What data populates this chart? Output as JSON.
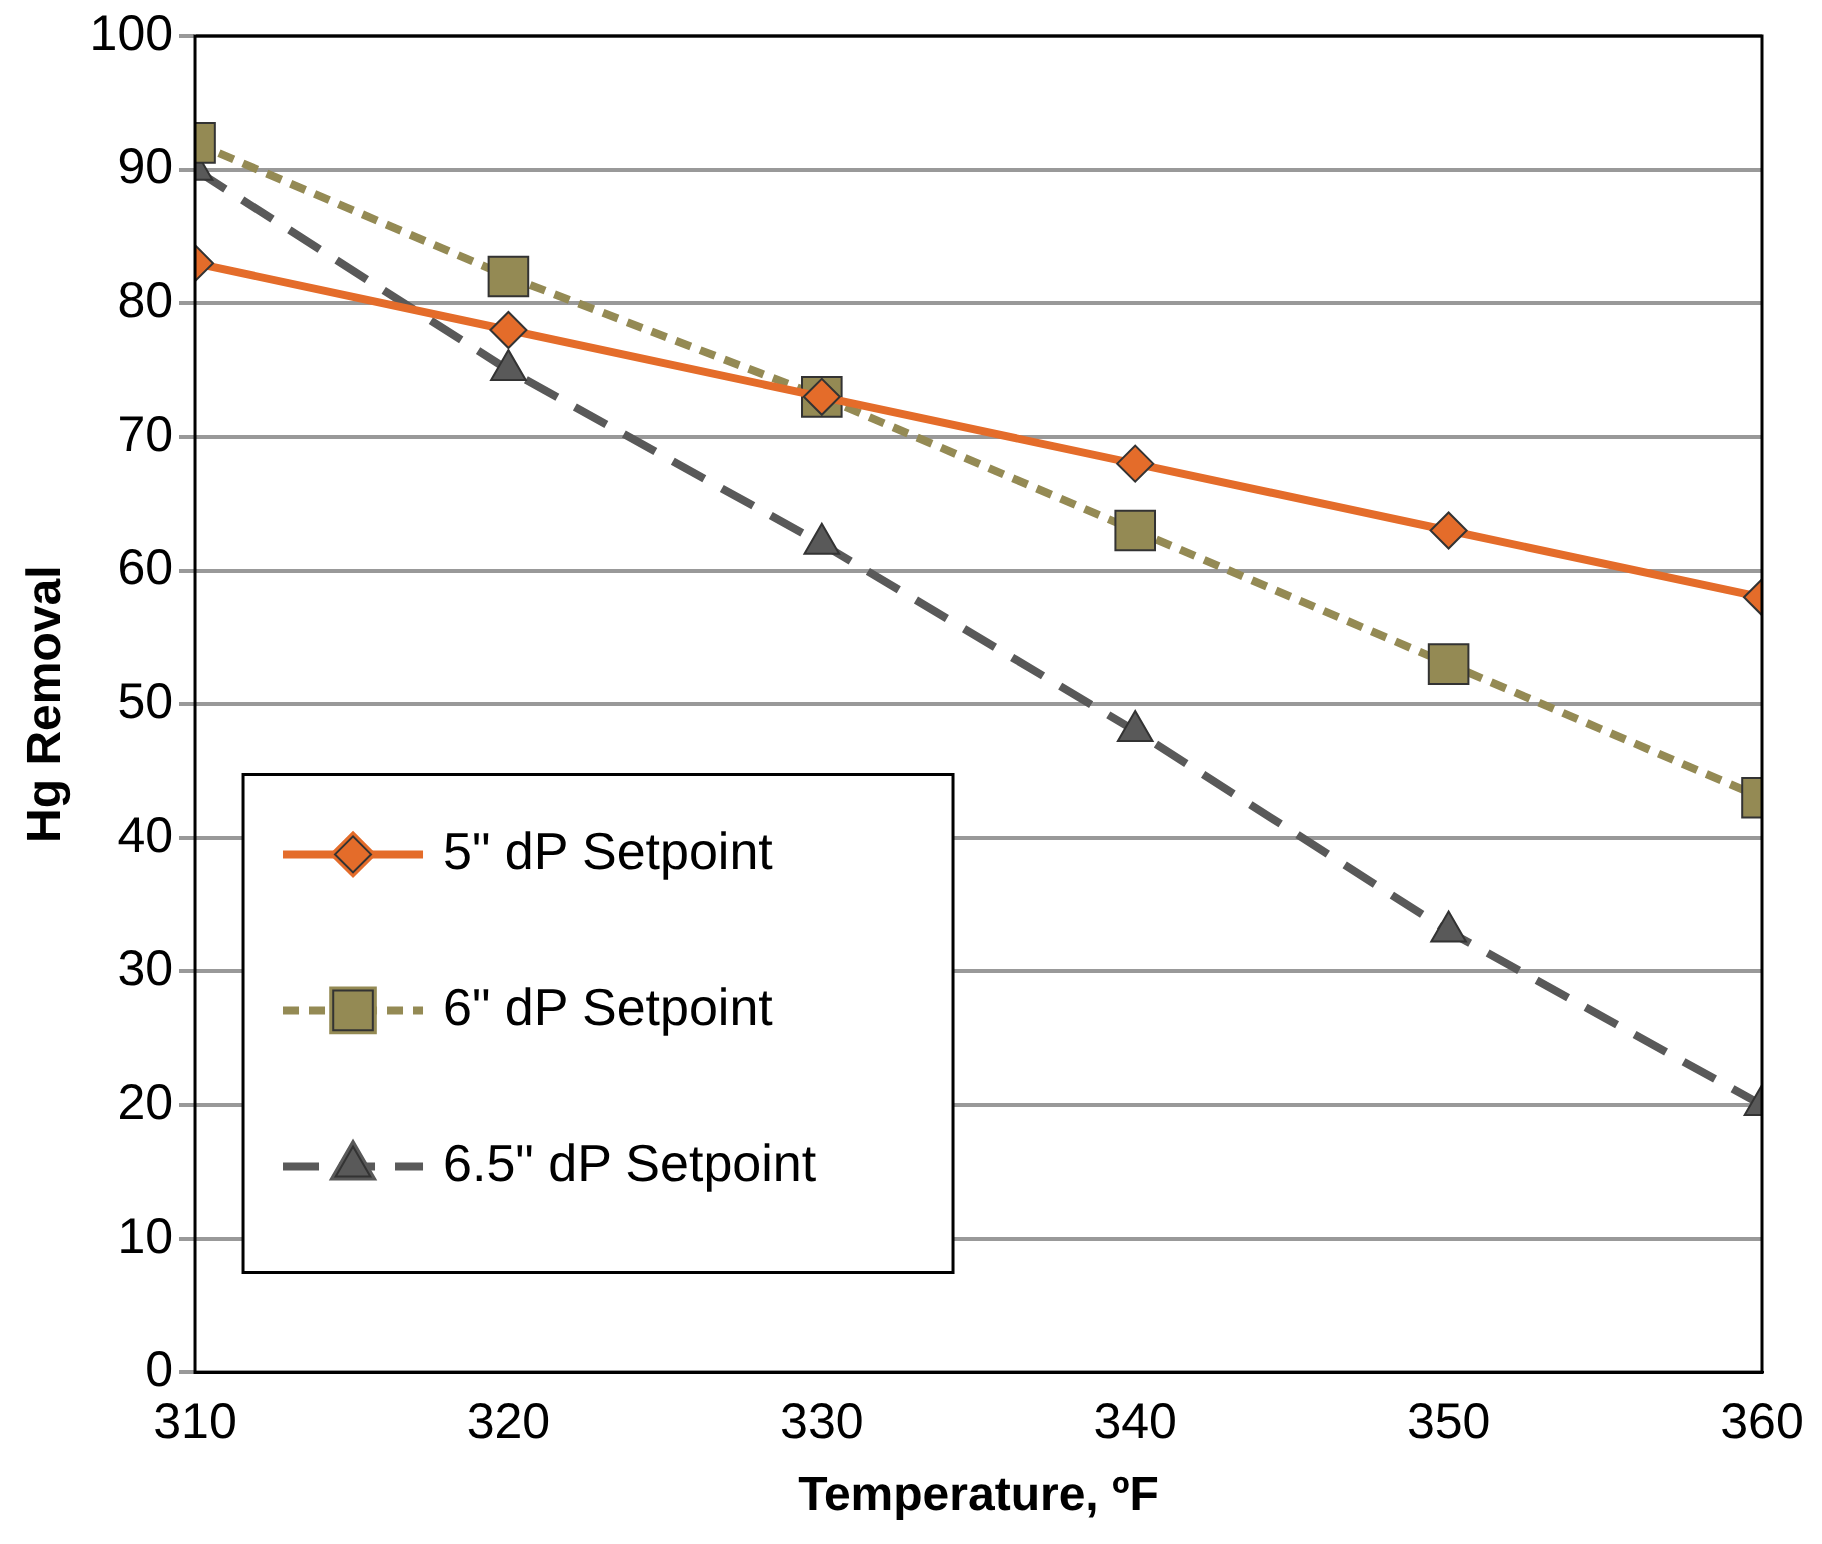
{
  "chart_data": {
    "type": "line",
    "xlabel": "Temperature, ºF",
    "ylabel": "Hg Removal",
    "x": [
      310,
      320,
      330,
      340,
      350,
      360
    ],
    "series": [
      {
        "name": "5\" dP Setpoint",
        "color": "#e46c2a",
        "marker": "diamond",
        "line_style": "solid",
        "values": [
          83,
          78,
          73,
          68,
          63,
          58
        ]
      },
      {
        "name": "6\" dP Setpoint",
        "color": "#948a54",
        "marker": "square",
        "line_style": "dotted",
        "values": [
          92,
          82,
          73,
          63,
          53,
          43
        ]
      },
      {
        "name": "6.5\" dP Setpoint",
        "color": "#595959",
        "marker": "triangle",
        "line_style": "dashed",
        "values": [
          90,
          75,
          62,
          48,
          33,
          20
        ]
      }
    ],
    "xlim": [
      310,
      360
    ],
    "xticks": [
      310,
      320,
      330,
      340,
      350,
      360
    ],
    "ylim": [
      0,
      100
    ],
    "yticks": [
      0,
      10,
      20,
      30,
      40,
      50,
      60,
      70,
      80,
      90,
      100
    ],
    "grid": "y",
    "legend": "bottom left"
  }
}
